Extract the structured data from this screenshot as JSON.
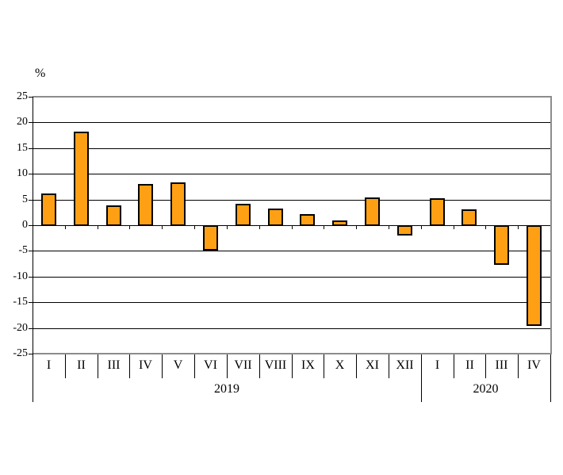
{
  "chart_data": {
    "type": "bar",
    "title": "",
    "ylabel": "%",
    "xlabel": "",
    "ylim": [
      -25,
      25
    ],
    "yticks": [
      25,
      20,
      15,
      10,
      5,
      0,
      -5,
      -10,
      -15,
      -20,
      -25
    ],
    "grid": true,
    "legend_position": "none",
    "categories": [
      "I",
      "II",
      "III",
      "IV",
      "V",
      "VI",
      "VII",
      "VIII",
      "IX",
      "X",
      "XI",
      "XII",
      "I",
      "II",
      "III",
      "IV"
    ],
    "values": [
      6.1,
      18.2,
      3.9,
      8.0,
      8.3,
      -4.8,
      4.2,
      3.2,
      2.1,
      0.9,
      5.4,
      -1.9,
      5.2,
      3.1,
      -7.6,
      -19.5
    ],
    "year_groups": [
      {
        "label": "2019",
        "months": 12
      },
      {
        "label": "2020",
        "months": 4
      }
    ],
    "colors": {
      "bar_fill": "#FFA014",
      "bar_border": "#000000",
      "gridline": "#000000",
      "frame": "#8c8c8c",
      "text": "#000000"
    }
  }
}
